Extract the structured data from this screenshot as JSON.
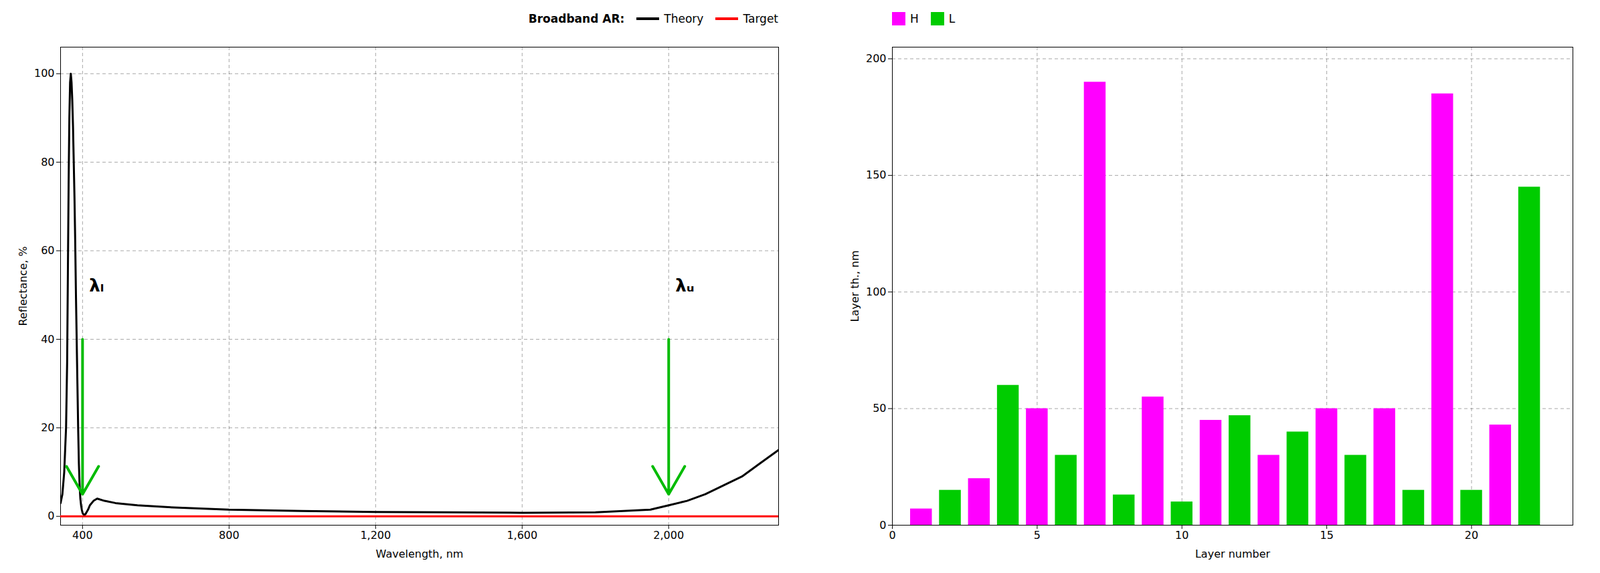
{
  "chart_data": [
    {
      "type": "line",
      "x": [
        340,
        345,
        350,
        355,
        358,
        360,
        362,
        364,
        366,
        368,
        370,
        372,
        374,
        376,
        378,
        380,
        382,
        384,
        386,
        388,
        390,
        392,
        394,
        396,
        398,
        400,
        402,
        404,
        406,
        408,
        410,
        415,
        420,
        430,
        440,
        460,
        490,
        550,
        650,
        800,
        1000,
        1200,
        1400,
        1600,
        1800,
        1950,
        2000,
        2050,
        2100,
        2150,
        2200,
        2250,
        2300
      ],
      "series": [
        {
          "name": "Theory",
          "color": "#000000",
          "values": [
            3,
            5,
            10,
            20,
            35,
            55,
            75,
            90,
            98,
            100,
            98,
            94,
            88,
            80,
            72,
            62,
            50,
            40,
            30,
            20,
            12,
            7,
            4,
            2.5,
            1.5,
            0.8,
            0.5,
            0.4,
            0.4,
            0.5,
            0.8,
            1.5,
            2.5,
            3.5,
            4,
            3.5,
            3,
            2.5,
            2,
            1.5,
            1.2,
            1.0,
            0.9,
            0.8,
            0.9,
            1.5,
            2.5,
            3.5,
            5,
            7,
            9,
            12,
            15
          ]
        },
        {
          "name": "Target",
          "color": "#FF0000",
          "values": [
            0,
            0,
            0,
            0,
            0,
            0,
            0,
            0,
            0,
            0,
            0,
            0,
            0,
            0,
            0,
            0,
            0,
            0,
            0,
            0,
            0,
            0,
            0,
            0,
            0,
            0,
            0,
            0,
            0,
            0,
            0,
            0,
            0,
            0,
            0,
            0,
            0,
            0,
            0,
            0,
            0,
            0,
            0,
            0,
            0,
            0,
            0,
            0,
            0,
            0,
            0,
            0,
            0
          ]
        }
      ],
      "xlabel": "Wavelength, nm",
      "ylabel": "Reflectance, %",
      "xlim": [
        340,
        2300
      ],
      "ylim": [
        -2,
        106
      ],
      "xticks": [
        400,
        800,
        1200,
        1600,
        2000
      ],
      "yticks": [
        0,
        20,
        40,
        60,
        80,
        100
      ],
      "grid": true,
      "legend": "upper right",
      "legend_title": "Broadband AR:",
      "annotations": [
        {
          "text": "λₗ",
          "x": 400,
          "y": 52,
          "arrow_from": 40,
          "arrow_to": 5,
          "color": "#00BB00"
        },
        {
          "text": "λᵤ",
          "x": 2000,
          "y": 52,
          "arrow_from": 40,
          "arrow_to": 5,
          "color": "#00BB00"
        }
      ]
    },
    {
      "type": "bar",
      "x": [
        1,
        2,
        3,
        4,
        5,
        6,
        7,
        8,
        9,
        10,
        11,
        12,
        13,
        14,
        15,
        16,
        17,
        18,
        19,
        20,
        21,
        22
      ],
      "series": [
        {
          "name": "H",
          "color": "#FF00FF",
          "values": [
            7,
            0,
            20,
            0,
            50,
            0,
            190,
            0,
            55,
            0,
            45,
            0,
            30,
            0,
            50,
            0,
            50,
            0,
            185,
            0,
            43,
            0
          ]
        },
        {
          "name": "L",
          "color": "#00CC00",
          "values": [
            0,
            15,
            0,
            60,
            0,
            30,
            0,
            13,
            0,
            10,
            0,
            47,
            0,
            40,
            0,
            30,
            0,
            15,
            0,
            15,
            0,
            145
          ]
        }
      ],
      "xlabel": "Layer number",
      "ylabel": "Layer th., nm",
      "xlim": [
        0,
        23.5
      ],
      "ylim": [
        0,
        205
      ],
      "xticks": [
        0,
        5,
        10,
        15,
        20
      ],
      "yticks": [
        0,
        50,
        100,
        150,
        200
      ],
      "grid": true,
      "legend": "upper left"
    }
  ]
}
